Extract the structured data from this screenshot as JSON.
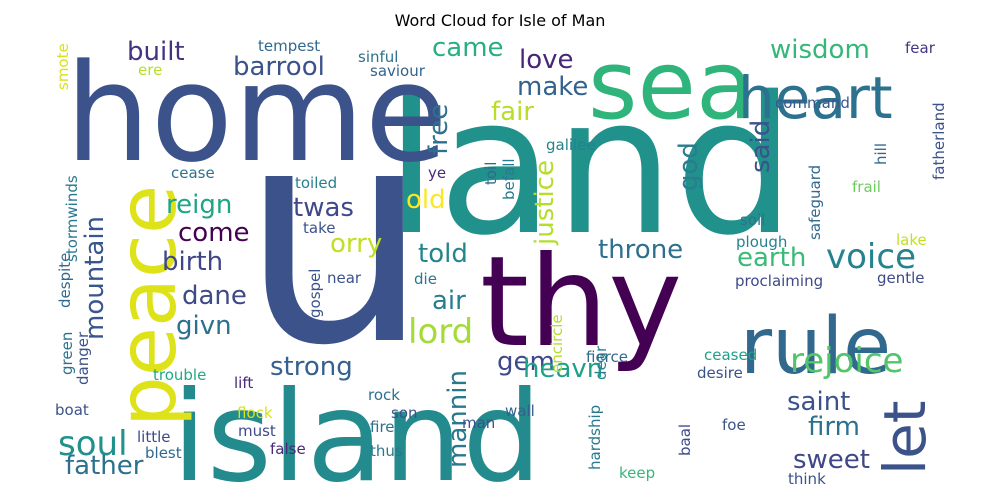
{
  "title": "Word Cloud for Isle of Man",
  "chart_data": {
    "type": "word_cloud",
    "colormap": "viridis",
    "background": "#ffffff",
    "words": [
      {
        "text": "u",
        "color": "#3b528b"
      },
      {
        "text": "land",
        "color": "#21918c"
      },
      {
        "text": "home",
        "color": "#3b528b"
      },
      {
        "text": "island",
        "color": "#238a8d"
      },
      {
        "text": "thy",
        "color": "#440154"
      },
      {
        "text": "sea",
        "color": "#2fb47c"
      },
      {
        "text": "peace",
        "color": "#dde318"
      },
      {
        "text": "heart",
        "color": "#2c728e"
      },
      {
        "text": "rule",
        "color": "#31688e"
      },
      {
        "text": "let",
        "color": "#3b528b"
      },
      {
        "text": "rejoice",
        "color": "#52c569"
      },
      {
        "text": "soul",
        "color": "#21918c"
      },
      {
        "text": "lord",
        "color": "#a5db36"
      },
      {
        "text": "voice",
        "color": "#26828e"
      },
      {
        "text": "mountain",
        "color": "#39568c"
      },
      {
        "text": "justice",
        "color": "#b5de2b"
      },
      {
        "text": "barrool",
        "color": "#3b528b"
      },
      {
        "text": "built",
        "color": "#46337e"
      },
      {
        "text": "wisdom",
        "color": "#35b779"
      },
      {
        "text": "came",
        "color": "#29af7f"
      },
      {
        "text": "love",
        "color": "#482677"
      },
      {
        "text": "make",
        "color": "#33638d"
      },
      {
        "text": "fair",
        "color": "#b8de29"
      },
      {
        "text": "free",
        "color": "#2c728e"
      },
      {
        "text": "reign",
        "color": "#20a486"
      },
      {
        "text": "old",
        "color": "#fde725"
      },
      {
        "text": "twas",
        "color": "#3e4989"
      },
      {
        "text": "orry",
        "color": "#c2df23"
      },
      {
        "text": "said",
        "color": "#3b528b"
      },
      {
        "text": "god",
        "color": "#287d8e"
      },
      {
        "text": "come",
        "color": "#440154"
      },
      {
        "text": "birth",
        "color": "#404688"
      },
      {
        "text": "told",
        "color": "#25858e"
      },
      {
        "text": "throne",
        "color": "#2d708e"
      },
      {
        "text": "earth",
        "color": "#3aba76"
      },
      {
        "text": "dane",
        "color": "#3e4a89"
      },
      {
        "text": "air",
        "color": "#287d8e"
      },
      {
        "text": "givn",
        "color": "#2d708e"
      },
      {
        "text": "strong",
        "color": "#34618d"
      },
      {
        "text": "gem",
        "color": "#3e4989"
      },
      {
        "text": "heavn",
        "color": "#1fa088"
      },
      {
        "text": "mannin",
        "color": "#2a788e"
      },
      {
        "text": "saint",
        "color": "#3b528b"
      },
      {
        "text": "firm",
        "color": "#2c728e"
      },
      {
        "text": "sweet",
        "color": "#3f4788"
      },
      {
        "text": "father",
        "color": "#2d708e"
      },
      {
        "text": "tempest",
        "color": "#31688e"
      },
      {
        "text": "sinful",
        "color": "#2c728e"
      },
      {
        "text": "saviour",
        "color": "#33638d"
      },
      {
        "text": "fear",
        "color": "#453781"
      },
      {
        "text": "command",
        "color": "#39568c"
      },
      {
        "text": "smote",
        "color": "#d8e219"
      },
      {
        "text": "ere",
        "color": "#b5de2b"
      },
      {
        "text": "galilee",
        "color": "#26828e"
      },
      {
        "text": "fatherland",
        "color": "#3b528b"
      },
      {
        "text": "hill",
        "color": "#31688e"
      },
      {
        "text": "frail",
        "color": "#6ccd5a"
      },
      {
        "text": "toil",
        "color": "#31688e"
      },
      {
        "text": "befall",
        "color": "#2a788e"
      },
      {
        "text": "ye",
        "color": "#482878"
      },
      {
        "text": "cease",
        "color": "#2c728e"
      },
      {
        "text": "toiled",
        "color": "#277f8e"
      },
      {
        "text": "take",
        "color": "#3b528b"
      },
      {
        "text": "stormwinds",
        "color": "#2a788e"
      },
      {
        "text": "soil",
        "color": "#2c728e"
      },
      {
        "text": "safeguard",
        "color": "#31688e"
      },
      {
        "text": "plough",
        "color": "#26828e"
      },
      {
        "text": "lake",
        "color": "#c2df23"
      },
      {
        "text": "die",
        "color": "#2a788e"
      },
      {
        "text": "near",
        "color": "#3b528b"
      },
      {
        "text": "gospel",
        "color": "#3b528b"
      },
      {
        "text": "proclaiming",
        "color": "#3e4a89"
      },
      {
        "text": "gentle",
        "color": "#3e4a89"
      },
      {
        "text": "despite",
        "color": "#31688e"
      },
      {
        "text": "green",
        "color": "#2c728e"
      },
      {
        "text": "danger",
        "color": "#3b528b"
      },
      {
        "text": "encircle",
        "color": "#b5de2b"
      },
      {
        "text": "dear",
        "color": "#26828e"
      },
      {
        "text": "fierce",
        "color": "#31688e"
      },
      {
        "text": "ceased",
        "color": "#1fa088"
      },
      {
        "text": "desire",
        "color": "#3b528b"
      },
      {
        "text": "trouble",
        "color": "#22a884"
      },
      {
        "text": "lift",
        "color": "#482878"
      },
      {
        "text": "rock",
        "color": "#2d708e"
      },
      {
        "text": "son",
        "color": "#3b528b"
      },
      {
        "text": "fire",
        "color": "#2d708e"
      },
      {
        "text": "flock",
        "color": "#d8e219"
      },
      {
        "text": "boat",
        "color": "#3b528b"
      },
      {
        "text": "little",
        "color": "#3e4a89"
      },
      {
        "text": "blest",
        "color": "#31688e"
      },
      {
        "text": "must",
        "color": "#3e4a89"
      },
      {
        "text": "false",
        "color": "#482878"
      },
      {
        "text": "thus",
        "color": "#2a788e"
      },
      {
        "text": "man",
        "color": "#3b528b"
      },
      {
        "text": "wall",
        "color": "#33638d"
      },
      {
        "text": "hardship",
        "color": "#2a788e"
      },
      {
        "text": "keep",
        "color": "#35b779"
      },
      {
        "text": "baal",
        "color": "#3e4a89"
      },
      {
        "text": "foe",
        "color": "#3b528b"
      },
      {
        "text": "think",
        "color": "#3b528b"
      }
    ]
  }
}
